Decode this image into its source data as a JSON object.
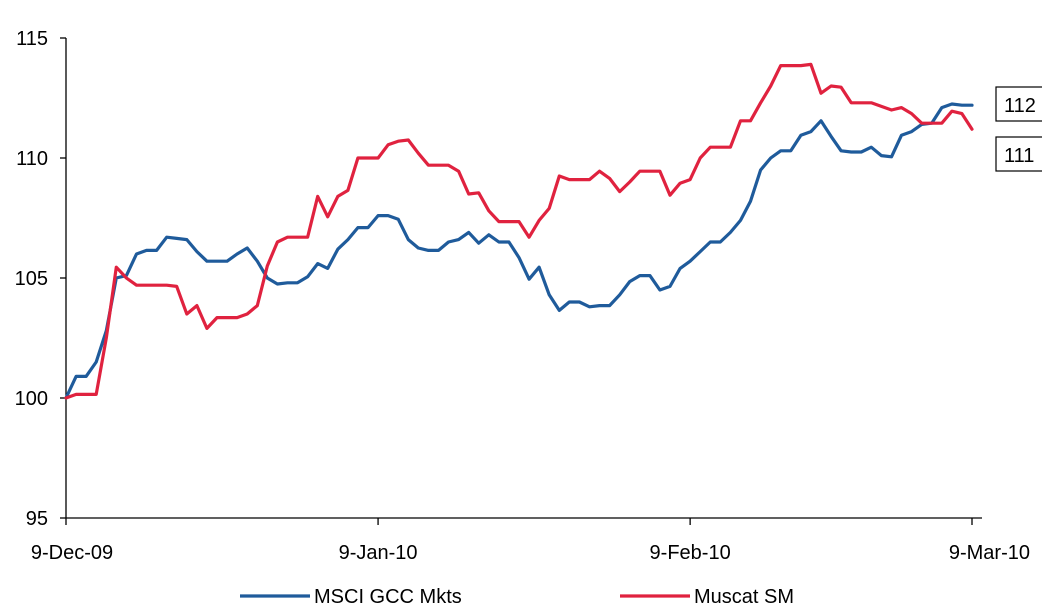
{
  "chart_data": {
    "type": "line",
    "title": "",
    "xlabel": "",
    "ylabel": "",
    "ylim": [
      95,
      115
    ],
    "y_ticks": [
      "115",
      "110",
      "105",
      "100",
      "95"
    ],
    "x_ticks": [
      "9-Dec-09",
      "9-Jan-10",
      "9-Feb-10",
      "9-Mar-10"
    ],
    "x_range": [
      "2009-12-09",
      "2010-03-09"
    ],
    "legend_position": "bottom",
    "grid": false,
    "colors": {
      "MSCI GCC Mkts": "#1f5b9b",
      "Muscat SM": "#e0223f"
    },
    "end_labels": [
      "112",
      "111"
    ],
    "series": [
      {
        "name": "MSCI GCC Mkts",
        "color": "#1f5b9b",
        "points": [
          [
            "2009-12-09",
            100.0
          ],
          [
            "2009-12-10",
            100.9
          ],
          [
            "2009-12-11",
            100.9
          ],
          [
            "2009-12-12",
            101.5
          ],
          [
            "2009-12-13",
            102.8
          ],
          [
            "2009-12-14",
            105.0
          ],
          [
            "2009-12-15",
            105.1
          ],
          [
            "2009-12-16",
            106.0
          ],
          [
            "2009-12-17",
            106.15
          ],
          [
            "2009-12-18",
            106.15
          ],
          [
            "2009-12-19",
            106.7
          ],
          [
            "2009-12-20",
            106.65
          ],
          [
            "2009-12-21",
            106.6
          ],
          [
            "2009-12-22",
            106.1
          ],
          [
            "2009-12-23",
            105.7
          ],
          [
            "2009-12-24",
            105.7
          ],
          [
            "2009-12-25",
            105.7
          ],
          [
            "2009-12-26",
            106.0
          ],
          [
            "2009-12-27",
            106.25
          ],
          [
            "2009-12-28",
            105.7
          ],
          [
            "2009-12-29",
            105.0
          ],
          [
            "2009-12-30",
            104.75
          ],
          [
            "2009-12-31",
            104.8
          ],
          [
            "2010-01-01",
            104.8
          ],
          [
            "2010-01-02",
            105.05
          ],
          [
            "2010-01-03",
            105.6
          ],
          [
            "2010-01-04",
            105.4
          ],
          [
            "2010-01-05",
            106.2
          ],
          [
            "2010-01-06",
            106.6
          ],
          [
            "2010-01-07",
            107.1
          ],
          [
            "2010-01-08",
            107.1
          ],
          [
            "2010-01-09",
            107.6
          ],
          [
            "2010-01-10",
            107.6
          ],
          [
            "2010-01-11",
            107.45
          ],
          [
            "2010-01-12",
            106.6
          ],
          [
            "2010-01-13",
            106.25
          ],
          [
            "2010-01-14",
            106.15
          ],
          [
            "2010-01-15",
            106.15
          ],
          [
            "2010-01-16",
            106.5
          ],
          [
            "2010-01-17",
            106.6
          ],
          [
            "2010-01-18",
            106.9
          ],
          [
            "2010-01-19",
            106.45
          ],
          [
            "2010-01-20",
            106.8
          ],
          [
            "2010-01-21",
            106.5
          ],
          [
            "2010-01-22",
            106.5
          ],
          [
            "2010-01-23",
            105.85
          ],
          [
            "2010-01-24",
            104.95
          ],
          [
            "2010-01-25",
            105.45
          ],
          [
            "2010-01-26",
            104.3
          ],
          [
            "2010-01-27",
            103.65
          ],
          [
            "2010-01-28",
            104.0
          ],
          [
            "2010-01-29",
            104.0
          ],
          [
            "2010-01-30",
            103.8
          ],
          [
            "2010-01-31",
            103.85
          ],
          [
            "2010-02-01",
            103.85
          ],
          [
            "2010-02-02",
            104.3
          ],
          [
            "2010-02-03",
            104.85
          ],
          [
            "2010-02-04",
            105.1
          ],
          [
            "2010-02-05",
            105.1
          ],
          [
            "2010-02-06",
            104.5
          ],
          [
            "2010-02-07",
            104.65
          ],
          [
            "2010-02-08",
            105.4
          ],
          [
            "2010-02-09",
            105.7
          ],
          [
            "2010-02-10",
            106.1
          ],
          [
            "2010-02-11",
            106.5
          ],
          [
            "2010-02-12",
            106.5
          ],
          [
            "2010-02-13",
            106.9
          ],
          [
            "2010-02-14",
            107.4
          ],
          [
            "2010-02-15",
            108.2
          ],
          [
            "2010-02-16",
            109.5
          ],
          [
            "2010-02-17",
            110.0
          ],
          [
            "2010-02-18",
            110.3
          ],
          [
            "2010-02-19",
            110.3
          ],
          [
            "2010-02-20",
            110.95
          ],
          [
            "2010-02-21",
            111.1
          ],
          [
            "2010-02-22",
            111.55
          ],
          [
            "2010-02-23",
            110.9
          ],
          [
            "2010-02-24",
            110.3
          ],
          [
            "2010-02-25",
            110.25
          ],
          [
            "2010-02-26",
            110.25
          ],
          [
            "2010-02-27",
            110.45
          ],
          [
            "2010-02-28",
            110.1
          ],
          [
            "2010-03-01",
            110.05
          ],
          [
            "2010-03-02",
            110.95
          ],
          [
            "2010-03-03",
            111.1
          ],
          [
            "2010-03-04",
            111.4
          ],
          [
            "2010-03-05",
            111.45
          ],
          [
            "2010-03-06",
            112.1
          ],
          [
            "2010-03-07",
            112.25
          ],
          [
            "2010-03-08",
            112.2
          ],
          [
            "2010-03-09",
            112.2
          ]
        ]
      },
      {
        "name": "Muscat SM",
        "color": "#e0223f",
        "points": [
          [
            "2009-12-09",
            100.0
          ],
          [
            "2009-12-10",
            100.15
          ],
          [
            "2009-12-11",
            100.15
          ],
          [
            "2009-12-12",
            100.15
          ],
          [
            "2009-12-13",
            102.5
          ],
          [
            "2009-12-14",
            105.45
          ],
          [
            "2009-12-15",
            105.0
          ],
          [
            "2009-12-16",
            104.7
          ],
          [
            "2009-12-17",
            104.7
          ],
          [
            "2009-12-18",
            104.7
          ],
          [
            "2009-12-19",
            104.7
          ],
          [
            "2009-12-20",
            104.65
          ],
          [
            "2009-12-21",
            103.5
          ],
          [
            "2009-12-22",
            103.85
          ],
          [
            "2009-12-23",
            102.9
          ],
          [
            "2009-12-24",
            103.35
          ],
          [
            "2009-12-25",
            103.35
          ],
          [
            "2009-12-26",
            103.35
          ],
          [
            "2009-12-27",
            103.5
          ],
          [
            "2009-12-28",
            103.85
          ],
          [
            "2009-12-29",
            105.5
          ],
          [
            "2009-12-30",
            106.5
          ],
          [
            "2009-12-31",
            106.7
          ],
          [
            "2010-01-01",
            106.7
          ],
          [
            "2010-01-02",
            106.7
          ],
          [
            "2010-01-03",
            108.4
          ],
          [
            "2010-01-04",
            107.55
          ],
          [
            "2010-01-05",
            108.4
          ],
          [
            "2010-01-06",
            108.65
          ],
          [
            "2010-01-07",
            110.0
          ],
          [
            "2010-01-08",
            110.0
          ],
          [
            "2010-01-09",
            110.0
          ],
          [
            "2010-01-10",
            110.55
          ],
          [
            "2010-01-11",
            110.7
          ],
          [
            "2010-01-12",
            110.75
          ],
          [
            "2010-01-13",
            110.2
          ],
          [
            "2010-01-14",
            109.7
          ],
          [
            "2010-01-15",
            109.7
          ],
          [
            "2010-01-16",
            109.7
          ],
          [
            "2010-01-17",
            109.45
          ],
          [
            "2010-01-18",
            108.5
          ],
          [
            "2010-01-19",
            108.55
          ],
          [
            "2010-01-20",
            107.8
          ],
          [
            "2010-01-21",
            107.35
          ],
          [
            "2010-01-22",
            107.35
          ],
          [
            "2010-01-23",
            107.35
          ],
          [
            "2010-01-24",
            106.7
          ],
          [
            "2010-01-25",
            107.4
          ],
          [
            "2010-01-26",
            107.9
          ],
          [
            "2010-01-27",
            109.25
          ],
          [
            "2010-01-28",
            109.1
          ],
          [
            "2010-01-29",
            109.1
          ],
          [
            "2010-01-30",
            109.1
          ],
          [
            "2010-01-31",
            109.45
          ],
          [
            "2010-02-01",
            109.15
          ],
          [
            "2010-02-02",
            108.6
          ],
          [
            "2010-02-03",
            109.0
          ],
          [
            "2010-02-04",
            109.45
          ],
          [
            "2010-02-05",
            109.45
          ],
          [
            "2010-02-06",
            109.45
          ],
          [
            "2010-02-07",
            108.45
          ],
          [
            "2010-02-08",
            108.95
          ],
          [
            "2010-02-09",
            109.1
          ],
          [
            "2010-02-10",
            110.0
          ],
          [
            "2010-02-11",
            110.45
          ],
          [
            "2010-02-12",
            110.45
          ],
          [
            "2010-02-13",
            110.45
          ],
          [
            "2010-02-14",
            111.55
          ],
          [
            "2010-02-15",
            111.55
          ],
          [
            "2010-02-16",
            112.3
          ],
          [
            "2010-02-17",
            113.0
          ],
          [
            "2010-02-18",
            113.85
          ],
          [
            "2010-02-19",
            113.85
          ],
          [
            "2010-02-20",
            113.85
          ],
          [
            "2010-02-21",
            113.9
          ],
          [
            "2010-02-22",
            112.7
          ],
          [
            "2010-02-23",
            113.0
          ],
          [
            "2010-02-24",
            112.95
          ],
          [
            "2010-02-25",
            112.3
          ],
          [
            "2010-02-26",
            112.3
          ],
          [
            "2010-02-27",
            112.3
          ],
          [
            "2010-02-28",
            112.15
          ],
          [
            "2010-03-01",
            112.0
          ],
          [
            "2010-03-02",
            112.1
          ],
          [
            "2010-03-03",
            111.85
          ],
          [
            "2010-03-04",
            111.45
          ],
          [
            "2010-03-05",
            111.45
          ],
          [
            "2010-03-06",
            111.45
          ],
          [
            "2010-03-07",
            111.95
          ],
          [
            "2010-03-08",
            111.85
          ],
          [
            "2010-03-09",
            111.2
          ]
        ]
      }
    ]
  }
}
